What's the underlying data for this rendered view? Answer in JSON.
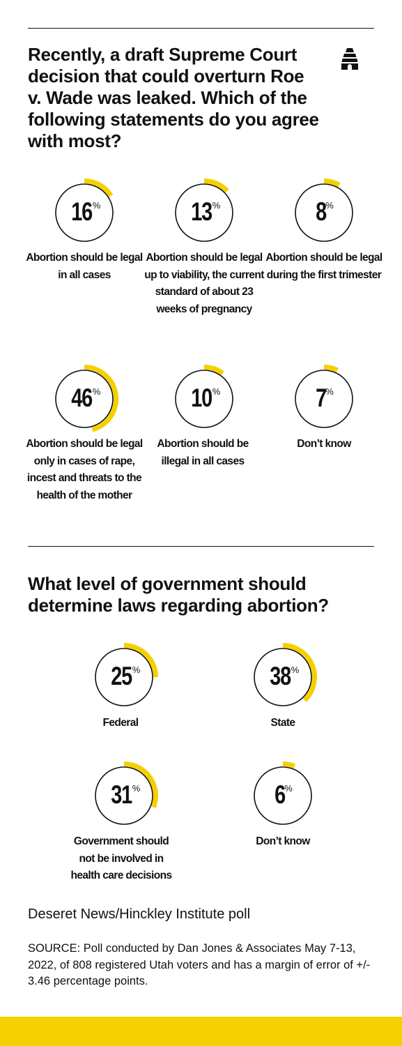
{
  "colors": {
    "accent": "#f5d000",
    "ring": "#111111",
    "text": "#111111"
  },
  "logo": {
    "icon": "beehive-icon"
  },
  "percent_sign": "%",
  "chart_data": [
    {
      "type": "pie",
      "title": "Recently, a draft Supreme Court decision that could overturn Roe v. Wade was leaked. Which of the following statements do you agree with most?",
      "categories": [
        "Abortion should be legal in all cases",
        "Abortion should be legal up to viability, the current standard of about 23 weeks of pregnancy",
        "Abortion should be legal during the first trimester",
        "Abortion should be legal only in cases of rape, incest and threats to the health of the mother",
        "Abortion should be illegal in all cases",
        "Don’t know"
      ],
      "values": [
        16,
        13,
        8,
        46,
        10,
        7
      ],
      "labels": [
        "16",
        "13",
        "8",
        "46",
        "10",
        "7"
      ],
      "unit": "%"
    },
    {
      "type": "pie",
      "title": "What level of government should determine laws regarding abortion?",
      "categories": [
        "Federal",
        "State",
        "Government should not be involved in health care decisions",
        "Don’t know"
      ],
      "values": [
        25,
        38,
        31,
        6
      ],
      "labels": [
        "25",
        "38",
        "31",
        "6"
      ],
      "unit": "%"
    }
  ],
  "footer": {
    "poll": "Deseret News/Hinckley Institute poll",
    "source": "SOURCE: Poll conducted by Dan Jones & Associates May 7-13, 2022, of 808 registered Utah voters and has a margin of error of +/- 3.46 percentage points."
  }
}
